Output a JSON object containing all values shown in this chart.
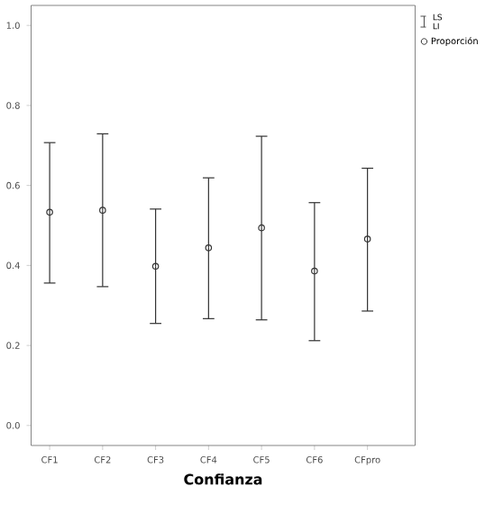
{
  "chart_data": {
    "type": "scatter",
    "xlabel": "Confianza",
    "categories": [
      "CF1",
      "CF2",
      "CF3",
      "CF4",
      "CF5",
      "CF6",
      "CFpro"
    ],
    "series": [
      {
        "name": "Proporción",
        "color": "#333333",
        "values": [
          0.533,
          0.538,
          0.398,
          0.444,
          0.494,
          0.386,
          0.466
        ],
        "errors": [
          [
            0.356,
            0.707
          ],
          [
            0.347,
            0.729
          ],
          [
            0.255,
            0.541
          ],
          [
            0.267,
            0.619
          ],
          [
            0.264,
            0.723
          ],
          [
            0.212,
            0.557
          ],
          [
            0.286,
            0.643
          ]
        ]
      }
    ],
    "ylim": [
      -0.05,
      1.05
    ],
    "yticks": [
      {
        "value": 0,
        "label": "0.0"
      },
      {
        "value": 0.2,
        "label": "0.2"
      },
      {
        "value": 0.4,
        "label": "0.4"
      },
      {
        "value": 0.6,
        "label": "0.6"
      },
      {
        "value": 0.8,
        "label": "0.8"
      },
      {
        "value": 1.0,
        "label": "1.0"
      }
    ],
    "marker": "circle",
    "grid": false,
    "legend": "top right",
    "annotations": [
      "LS",
      "LI"
    ]
  }
}
